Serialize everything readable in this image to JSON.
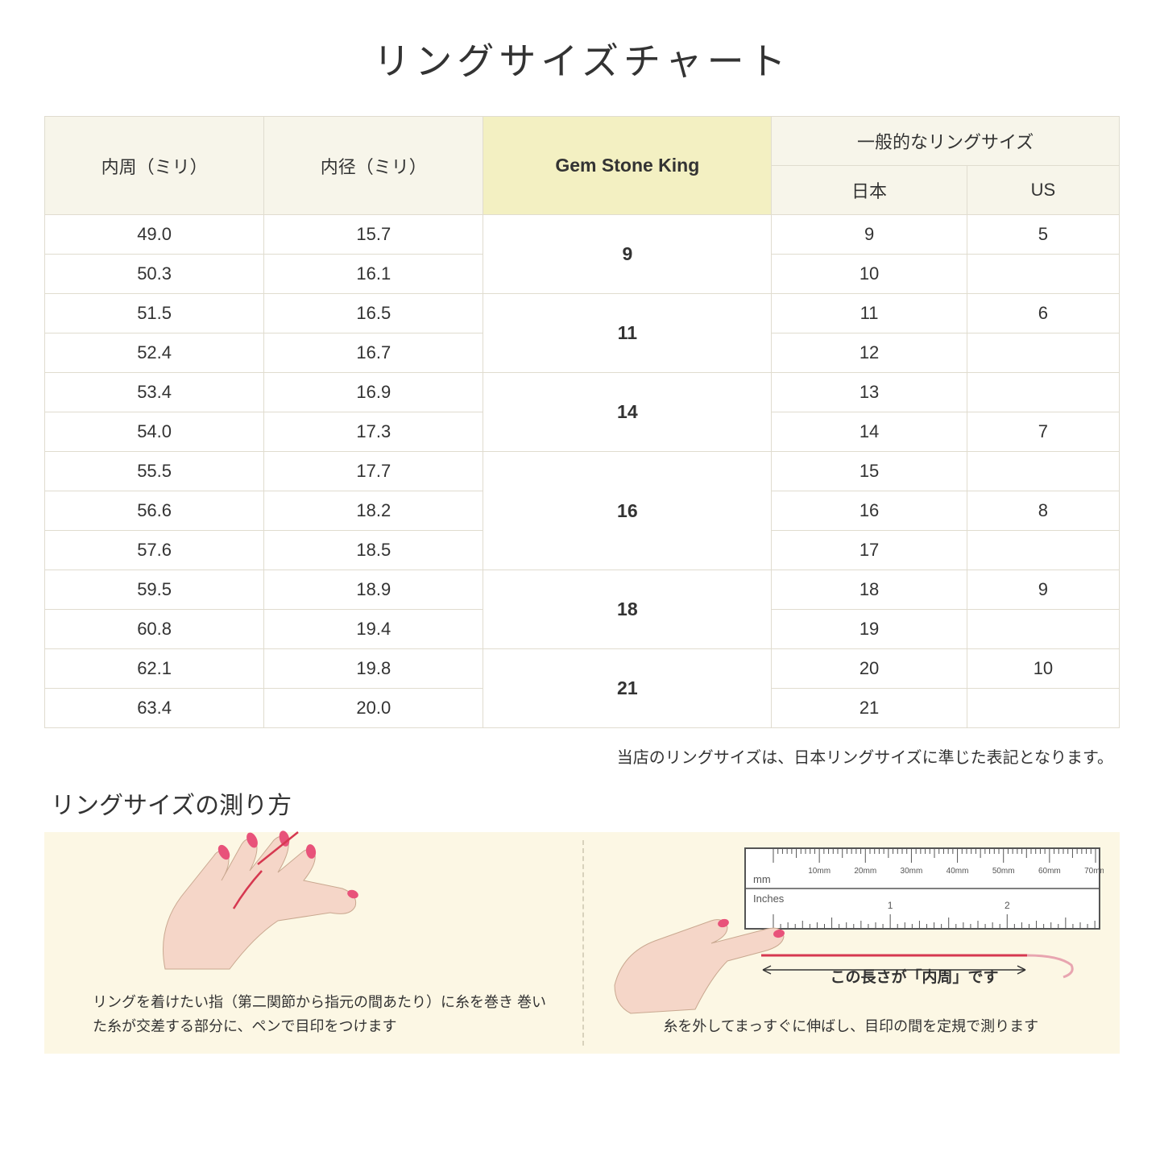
{
  "title": "リングサイズチャート",
  "table": {
    "headers": {
      "col1": "内周（ミリ）",
      "col2": "内径（ミリ）",
      "col3": "Gem Stone King",
      "col4_group": "一般的なリングサイズ",
      "col4a": "日本",
      "col4b": "US"
    },
    "header_bg": "#f7f5ea",
    "gsk_header_bg": "#f3f0c2",
    "border_color": "#e0dccf",
    "rows": [
      {
        "circ": "49.0",
        "dia": "15.7",
        "gsk": "9",
        "gsk_span": 2,
        "jp": "9",
        "us": "5"
      },
      {
        "circ": "50.3",
        "dia": "16.1",
        "gsk": "",
        "gsk_span": 0,
        "jp": "10",
        "us": ""
      },
      {
        "circ": "51.5",
        "dia": "16.5",
        "gsk": "11",
        "gsk_span": 2,
        "jp": "11",
        "us": "6"
      },
      {
        "circ": "52.4",
        "dia": "16.7",
        "gsk": "",
        "gsk_span": 0,
        "jp": "12",
        "us": ""
      },
      {
        "circ": "53.4",
        "dia": "16.9",
        "gsk": "14",
        "gsk_span": 2,
        "jp": "13",
        "us": ""
      },
      {
        "circ": "54.0",
        "dia": "17.3",
        "gsk": "",
        "gsk_span": 0,
        "jp": "14",
        "us": "7"
      },
      {
        "circ": "55.5",
        "dia": "17.7",
        "gsk": "16",
        "gsk_span": 3,
        "jp": "15",
        "us": ""
      },
      {
        "circ": "56.6",
        "dia": "18.2",
        "gsk": "",
        "gsk_span": 0,
        "jp": "16",
        "us": "8"
      },
      {
        "circ": "57.6",
        "dia": "18.5",
        "gsk": "",
        "gsk_span": 0,
        "jp": "17",
        "us": ""
      },
      {
        "circ": "59.5",
        "dia": "18.9",
        "gsk": "18",
        "gsk_span": 2,
        "jp": "18",
        "us": "9"
      },
      {
        "circ": "60.8",
        "dia": "19.4",
        "gsk": "",
        "gsk_span": 0,
        "jp": "19",
        "us": ""
      },
      {
        "circ": "62.1",
        "dia": "19.8",
        "gsk": "21",
        "gsk_span": 2,
        "jp": "20",
        "us": "10"
      },
      {
        "circ": "63.4",
        "dia": "20.0",
        "gsk": "",
        "gsk_span": 0,
        "jp": "21",
        "us": ""
      }
    ]
  },
  "table_note": "当店のリングサイズは、日本リングサイズに準じた表記となります。",
  "how_to": {
    "title": "リングサイズの測り方",
    "bg_color": "#fcf7e4",
    "left_text": "リングを着けたい指（第二関節から指元の間あたり）に糸を巻き\n巻いた糸が交差する部分に、ペンで目印をつけます",
    "right_text": "糸を外してまっすぐに伸ばし、目印の間を定規で測ります",
    "arrow_label": "この長さが「内周」です",
    "ruler": {
      "mm_label": "mm",
      "inches_label": "Inches",
      "mm_ticks": [
        "10mm",
        "20mm",
        "30mm",
        "40mm",
        "50mm",
        "60mm",
        "70mm"
      ],
      "inch_ticks": [
        "1",
        "2"
      ]
    },
    "skin_color": "#f5d6c8",
    "nail_color": "#e8527a",
    "thread_color": "#d63850"
  }
}
